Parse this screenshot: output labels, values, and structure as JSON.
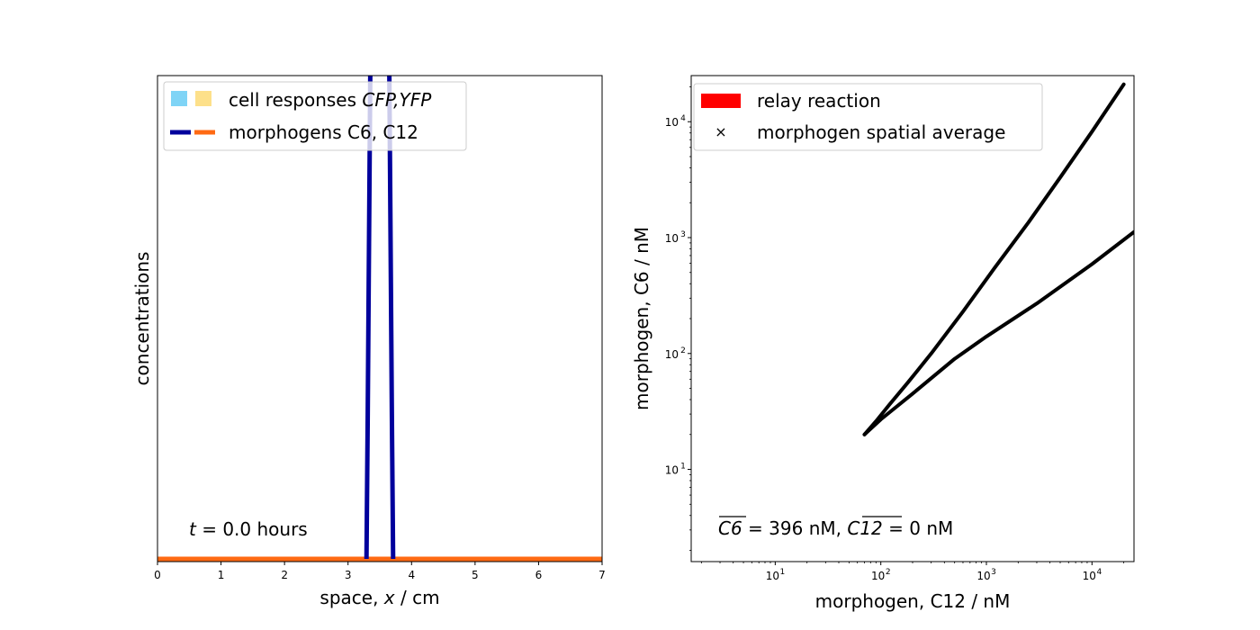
{
  "chart_data": [
    {
      "type": "line",
      "xlabel": "space, x / cm",
      "ylabel": "concentrations",
      "xlim": [
        0,
        7
      ],
      "xticks": [
        "0",
        "1",
        "2",
        "3",
        "4",
        "5",
        "6",
        "7"
      ],
      "y_ticks_shown": false,
      "annotation": {
        "var": "t",
        "text": " = 0.0 hours"
      },
      "legend": {
        "placement": "upper-left",
        "entries": [
          {
            "label_plain": "cell responses ",
            "label_italic": "CFP,YFP",
            "swatches": [
              "#7fd4f6",
              "#fde08a"
            ],
            "kind": "patch"
          },
          {
            "label_plain": "morphogens C6, C12",
            "swatches": [
              "#00009c",
              "#ff6a13"
            ],
            "kind": "line"
          }
        ]
      },
      "series": [
        {
          "name": "C6",
          "color": "#00009c",
          "x": [
            3.29,
            3.31,
            3.33,
            3.35,
            3.37,
            3.63,
            3.65,
            3.67,
            3.69,
            3.71
          ],
          "y": [
            0.0,
            0.3,
            0.65,
            1.0,
            1.5,
            1.5,
            1.0,
            0.65,
            0.3,
            0.0
          ]
        },
        {
          "name": "C12",
          "color": "#ff6a13",
          "x": [
            0,
            7
          ],
          "y": [
            0.0,
            0.0
          ]
        }
      ],
      "ylim": [
        0,
        1.0
      ]
    },
    {
      "type": "line",
      "xlabel": "morphogen, C12 / nM",
      "ylabel": "morphogen, C6 / nM",
      "xscale": "log",
      "yscale": "log",
      "xlim": [
        1.6,
        25000
      ],
      "ylim": [
        1.6,
        25000
      ],
      "xticks": [
        {
          "value": 10,
          "label": "10",
          "exp": "1"
        },
        {
          "value": 100,
          "label": "10",
          "exp": "2"
        },
        {
          "value": 1000,
          "label": "10",
          "exp": "3"
        },
        {
          "value": 10000,
          "label": "10",
          "exp": "4"
        }
      ],
      "yticks": [
        {
          "value": 10,
          "label": "10",
          "exp": "1"
        },
        {
          "value": 100,
          "label": "10",
          "exp": "2"
        },
        {
          "value": 1000,
          "label": "10",
          "exp": "3"
        },
        {
          "value": 10000,
          "label": "10",
          "exp": "4"
        }
      ],
      "annotation": {
        "c6_bar": "C6",
        "c6_text": " = 396 nM, ",
        "c12_bar": "C12",
        "c12_text": " = 0 nM"
      },
      "legend": {
        "placement": "upper-left",
        "entries": [
          {
            "label": "relay reaction",
            "kind": "patch",
            "color": "#ff0000"
          },
          {
            "label": "morphogen spatial average",
            "kind": "marker",
            "marker": "×"
          }
        ]
      },
      "series": [
        {
          "name": "relay reaction",
          "color": "#000000",
          "x": [
            70,
            90,
            120,
            180,
            300,
            600,
            1200,
            2500,
            5000,
            10000,
            20000
          ],
          "y": [
            20,
            26,
            36,
            56,
            100,
            230,
            550,
            1350,
            3300,
            8200,
            21000
          ]
        },
        {
          "name": "relay reaction lower branch",
          "color": "#000000",
          "x": [
            70,
            100,
            200,
            500,
            1000,
            3000,
            10000,
            25000
          ],
          "y": [
            20,
            27,
            45,
            90,
            140,
            270,
            590,
            1120
          ]
        }
      ]
    }
  ]
}
